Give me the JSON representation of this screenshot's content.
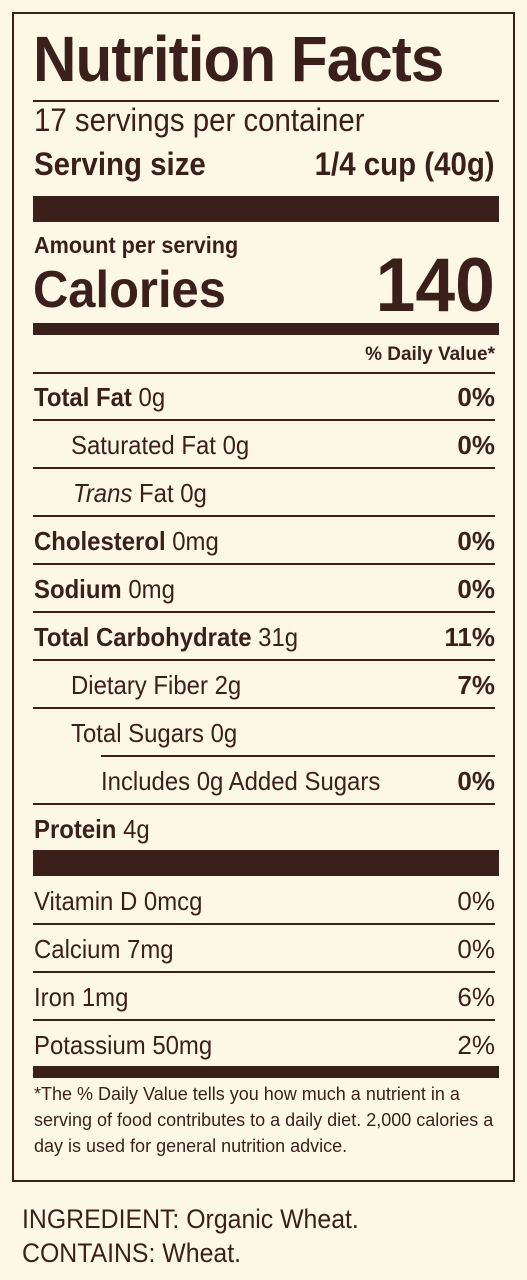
{
  "label": {
    "title": "Nutrition Facts",
    "servings_per_container": "17 servings per container",
    "serving_size_label": "Serving size",
    "serving_size_value": "1/4 cup (40g)",
    "amount_per_serving": "Amount per serving",
    "calories_label": "Calories",
    "calories_value": "140",
    "daily_value_header": "% Daily Value*"
  },
  "nutrients": {
    "total_fat": {
      "name": "Total Fat",
      "amount": "0g",
      "dv": "0%"
    },
    "saturated_fat": {
      "name": "Saturated Fat",
      "amount": "0g",
      "dv": "0%"
    },
    "trans_fat": {
      "name_italic": "Trans",
      "name_rest": "Fat",
      "amount": "0g"
    },
    "cholesterol": {
      "name": "Cholesterol",
      "amount": "0mg",
      "dv": "0%"
    },
    "sodium": {
      "name": "Sodium",
      "amount": "0mg",
      "dv": "0%"
    },
    "total_carbohydrate": {
      "name": "Total Carbohydrate",
      "amount": "31g",
      "dv": "11%"
    },
    "dietary_fiber": {
      "name": "Dietary Fiber",
      "amount": "2g",
      "dv": "7%"
    },
    "total_sugars": {
      "name": "Total Sugars",
      "amount": "0g"
    },
    "added_sugars": {
      "text": "Includes 0g Added Sugars",
      "dv": "0%"
    },
    "protein": {
      "name": "Protein",
      "amount": "4g"
    }
  },
  "vitamins": [
    {
      "text": "Vitamin D 0mcg",
      "dv": "0%"
    },
    {
      "text": "Calcium 7mg",
      "dv": "0%"
    },
    {
      "text": "Iron 1mg",
      "dv": "6%"
    },
    {
      "text": "Potassium 50mg",
      "dv": "2%"
    }
  ],
  "footnote": "*The % Daily Value tells you how much a nutrient in a serving of food contributes to a daily diet. 2,000 calories a day is used for general nutrition advice.",
  "ingredients": "INGREDIENT: Organic Wheat.",
  "contains": "CONTAINS: Wheat.",
  "colors": {
    "ink": "#3b1f1b",
    "background": "#fdf8e6"
  }
}
